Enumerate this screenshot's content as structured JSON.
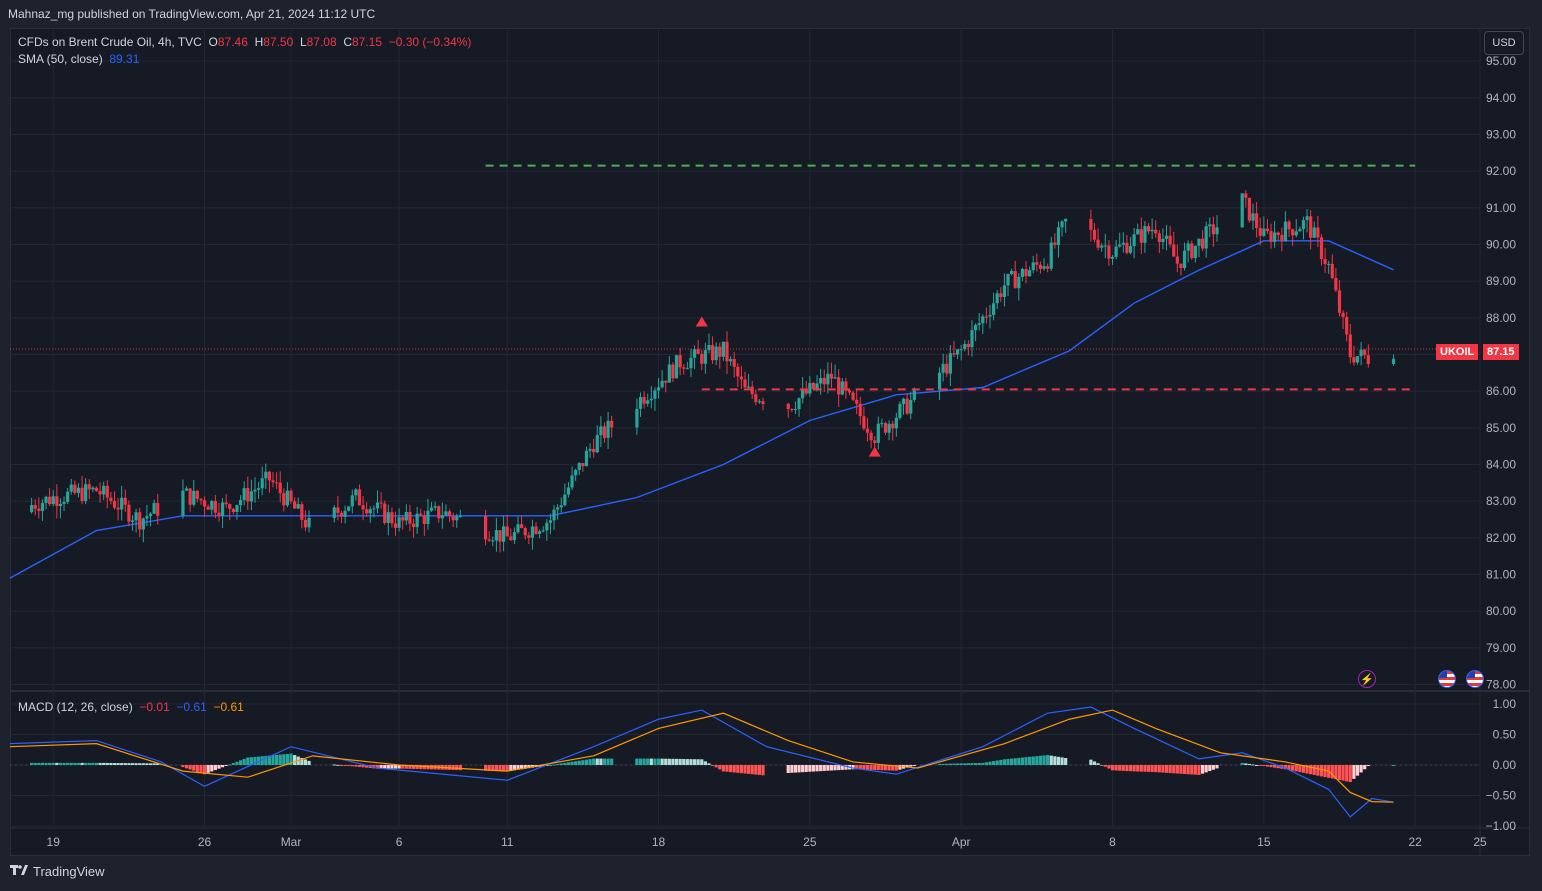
{
  "published": "Mahnaz_mg published on TradingView.com, Apr 21, 2024 11:12 UTC",
  "legend": {
    "symbol_desc": "CFDs on Brent Crude Oil, 4h, TVC",
    "o_label": "O",
    "o_value": "87.46",
    "h_label": "H",
    "h_value": "87.50",
    "l_label": "L",
    "l_value": "87.08",
    "c_label": "C",
    "c_value": "87.15",
    "change": "−0.30 (−0.34%)",
    "sma_label": "SMA (50, close)",
    "sma_value": "89.31",
    "macd_label": "MACD (12, 26, close)",
    "macd_hist": "−0.01",
    "macd_line": "−0.61",
    "macd_signal": "−0.61"
  },
  "currency": "USD",
  "last_price": {
    "symbol": "UKOIL",
    "price": "87.15"
  },
  "footer": {
    "brand": "TradingView",
    "logo": "tradingview-logo"
  },
  "icons": [
    "lightning-icon",
    "us-flag-icon",
    "us-flag-icon"
  ],
  "colors": {
    "background": "#161a25",
    "grid": "#232733",
    "text": "#b2b5be",
    "up": "#26a69a",
    "down": "#f23645",
    "sma": "#2962ff",
    "macd_line": "#2962ff",
    "signal_line": "#ff9800",
    "resistance": "#4caf50",
    "support": "#f23645"
  },
  "chart_data": [
    {
      "type": "candlestick",
      "title": "CFDs on Brent Crude Oil, 4h, TVC",
      "timeframe": "4h",
      "y_axis": {
        "ticks": [
          "95.00",
          "94.00",
          "93.00",
          "92.00",
          "91.00",
          "90.00",
          "89.00",
          "88.00",
          "87.00",
          "86.00",
          "85.00",
          "84.00",
          "83.00",
          "82.00",
          "81.00",
          "80.00",
          "79.00",
          "78.00"
        ],
        "range": [
          77.85,
          95.85
        ]
      },
      "x_axis": {
        "ticks": [
          "19",
          "26",
          "Mar",
          "6",
          "11",
          "18",
          "25",
          "Apr",
          "8",
          "15",
          "22",
          "25"
        ],
        "range": [
          "2024-02-17",
          "2024-04-25"
        ]
      },
      "approx_close_path": [
        {
          "date": "2024-02-17",
          "close": 82.7
        },
        {
          "date": "2024-02-19",
          "close": 83.1
        },
        {
          "date": "2024-02-21",
          "close": 83.3
        },
        {
          "date": "2024-02-23",
          "close": 82.5
        },
        {
          "date": "2024-02-25",
          "close": 83.2
        },
        {
          "date": "2024-02-27",
          "close": 82.8
        },
        {
          "date": "2024-02-29",
          "close": 83.6
        },
        {
          "date": "2024-03-02",
          "close": 82.2
        },
        {
          "date": "2024-03-04",
          "close": 83.1
        },
        {
          "date": "2024-03-06",
          "close": 82.4
        },
        {
          "date": "2024-03-08",
          "close": 82.7
        },
        {
          "date": "2024-03-11",
          "close": 82.0
        },
        {
          "date": "2024-03-13",
          "close": 82.5
        },
        {
          "date": "2024-03-15",
          "close": 84.6
        },
        {
          "date": "2024-03-17",
          "close": 85.7
        },
        {
          "date": "2024-03-19",
          "close": 86.8
        },
        {
          "date": "2024-03-21",
          "close": 87.1
        },
        {
          "date": "2024-03-22",
          "close": 86.0
        },
        {
          "date": "2024-03-24",
          "close": 85.6
        },
        {
          "date": "2024-03-26",
          "close": 86.4
        },
        {
          "date": "2024-03-28",
          "close": 84.8
        },
        {
          "date": "2024-03-30",
          "close": 85.9
        },
        {
          "date": "2024-04-01",
          "close": 87.1
        },
        {
          "date": "2024-04-03",
          "close": 88.9
        },
        {
          "date": "2024-04-05",
          "close": 89.6
        },
        {
          "date": "2024-04-06",
          "close": 90.8
        },
        {
          "date": "2024-04-08",
          "close": 89.8
        },
        {
          "date": "2024-04-10",
          "close": 90.5
        },
        {
          "date": "2024-04-11",
          "close": 89.5
        },
        {
          "date": "2024-04-13",
          "close": 90.6
        },
        {
          "date": "2024-04-14",
          "close": 91.2
        },
        {
          "date": "2024-04-15",
          "close": 90.2
        },
        {
          "date": "2024-04-17",
          "close": 90.6
        },
        {
          "date": "2024-04-18",
          "close": 89.4
        },
        {
          "date": "2024-04-19",
          "close": 87.0
        },
        {
          "date": "2024-04-20",
          "close": 86.9
        },
        {
          "date": "2024-04-21",
          "close": 87.15
        }
      ],
      "sma50_path": [
        {
          "date": "2024-02-17",
          "value": 80.9
        },
        {
          "date": "2024-02-21",
          "value": 82.2
        },
        {
          "date": "2024-02-25",
          "value": 82.6
        },
        {
          "date": "2024-03-02",
          "value": 82.6
        },
        {
          "date": "2024-03-08",
          "value": 82.6
        },
        {
          "date": "2024-03-13",
          "value": 82.6
        },
        {
          "date": "2024-03-17",
          "value": 83.1
        },
        {
          "date": "2024-03-21",
          "value": 84.0
        },
        {
          "date": "2024-03-25",
          "value": 85.2
        },
        {
          "date": "2024-03-29",
          "value": 85.9
        },
        {
          "date": "2024-04-02",
          "value": 86.1
        },
        {
          "date": "2024-04-06",
          "value": 87.1
        },
        {
          "date": "2024-04-09",
          "value": 88.4
        },
        {
          "date": "2024-04-12",
          "value": 89.3
        },
        {
          "date": "2024-04-15",
          "value": 90.1
        },
        {
          "date": "2024-04-18",
          "value": 90.1
        },
        {
          "date": "2024-04-21",
          "value": 89.31
        }
      ],
      "horizontal_lines": [
        {
          "name": "resistance",
          "price": 92.15,
          "style": "dashed",
          "color": "#4caf50",
          "from": "2024-03-10",
          "to": "2024-04-22"
        },
        {
          "name": "support",
          "price": 86.05,
          "style": "dashed",
          "color": "#f23645",
          "from": "2024-03-20",
          "to": "2024-04-22"
        },
        {
          "name": "last-price",
          "price": 87.15,
          "style": "dotted",
          "color": "#f23645"
        }
      ],
      "markers": [
        {
          "shape": "triangle-up",
          "price": 87.9,
          "date": "2024-03-20",
          "color": "#f23645"
        },
        {
          "shape": "triangle-up",
          "price": 84.35,
          "date": "2024-03-28",
          "color": "#f23645"
        }
      ]
    },
    {
      "type": "bar",
      "title": "MACD (12, 26, close)",
      "y_axis": {
        "ticks": [
          "1.00",
          "0.50",
          "0.00",
          "−0.50",
          "−1.00"
        ],
        "range": [
          -1.0,
          1.0
        ]
      },
      "macd_path": [
        {
          "date": "2024-02-17",
          "value": 0.35
        },
        {
          "date": "2024-02-21",
          "value": 0.4
        },
        {
          "date": "2024-02-24",
          "value": 0.05
        },
        {
          "date": "2024-02-26",
          "value": -0.35
        },
        {
          "date": "2024-03-01",
          "value": 0.3
        },
        {
          "date": "2024-03-05",
          "value": -0.05
        },
        {
          "date": "2024-03-11",
          "value": -0.25
        },
        {
          "date": "2024-03-15",
          "value": 0.3
        },
        {
          "date": "2024-03-18",
          "value": 0.75
        },
        {
          "date": "2024-03-20",
          "value": 0.9
        },
        {
          "date": "2024-03-23",
          "value": 0.3
        },
        {
          "date": "2024-03-27",
          "value": -0.05
        },
        {
          "date": "2024-03-29",
          "value": -0.15
        },
        {
          "date": "2024-04-02",
          "value": 0.3
        },
        {
          "date": "2024-04-05",
          "value": 0.85
        },
        {
          "date": "2024-04-07",
          "value": 0.95
        },
        {
          "date": "2024-04-09",
          "value": 0.6
        },
        {
          "date": "2024-04-12",
          "value": 0.1
        },
        {
          "date": "2024-04-14",
          "value": 0.2
        },
        {
          "date": "2024-04-16",
          "value": -0.05
        },
        {
          "date": "2024-04-18",
          "value": -0.4
        },
        {
          "date": "2024-04-19",
          "value": -0.85
        },
        {
          "date": "2024-04-20",
          "value": -0.55
        },
        {
          "date": "2024-04-21",
          "value": -0.61
        }
      ],
      "signal_path": [
        {
          "date": "2024-02-17",
          "value": 0.3
        },
        {
          "date": "2024-02-21",
          "value": 0.35
        },
        {
          "date": "2024-02-25",
          "value": -0.1
        },
        {
          "date": "2024-02-28",
          "value": -0.2
        },
        {
          "date": "2024-03-02",
          "value": 0.15
        },
        {
          "date": "2024-03-06",
          "value": 0.0
        },
        {
          "date": "2024-03-11",
          "value": -0.1
        },
        {
          "date": "2024-03-15",
          "value": 0.15
        },
        {
          "date": "2024-03-18",
          "value": 0.6
        },
        {
          "date": "2024-03-21",
          "value": 0.85
        },
        {
          "date": "2024-03-24",
          "value": 0.4
        },
        {
          "date": "2024-03-27",
          "value": 0.05
        },
        {
          "date": "2024-03-30",
          "value": -0.05
        },
        {
          "date": "2024-04-03",
          "value": 0.35
        },
        {
          "date": "2024-04-06",
          "value": 0.75
        },
        {
          "date": "2024-04-08",
          "value": 0.9
        },
        {
          "date": "2024-04-10",
          "value": 0.6
        },
        {
          "date": "2024-04-13",
          "value": 0.2
        },
        {
          "date": "2024-04-16",
          "value": 0.05
        },
        {
          "date": "2024-04-18",
          "value": -0.1
        },
        {
          "date": "2024-04-19",
          "value": -0.45
        },
        {
          "date": "2024-04-20",
          "value": -0.6
        },
        {
          "date": "2024-04-21",
          "value": -0.61
        }
      ]
    }
  ]
}
